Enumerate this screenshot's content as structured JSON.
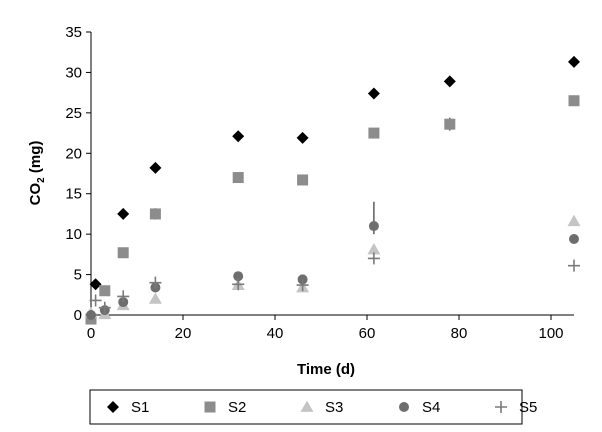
{
  "chart_data": {
    "type": "scatter",
    "title": "",
    "xlabel": "Time (d)",
    "ylabel_main": "CO",
    "ylabel_sub": "2",
    "ylabel_unit": " (mg)",
    "xlim": [
      0,
      105
    ],
    "ylim": [
      0,
      35
    ],
    "xticks": [
      0,
      20,
      40,
      60,
      80,
      100
    ],
    "yticks": [
      0,
      5,
      10,
      15,
      20,
      25,
      30,
      35
    ],
    "grid": false,
    "legend_position": "bottom",
    "series": [
      {
        "name": "S1",
        "marker": "diamond",
        "color": "#000000",
        "points": [
          [
            1,
            3.8
          ],
          [
            7,
            12.5
          ],
          [
            14,
            18.2
          ],
          [
            32,
            22.1
          ],
          [
            46,
            21.9
          ],
          [
            61.5,
            27.4
          ],
          [
            78,
            28.9
          ],
          [
            105,
            31.3
          ]
        ]
      },
      {
        "name": "S2",
        "marker": "square",
        "color": "#8c8c8c",
        "points": [
          [
            0,
            -0.5
          ],
          [
            3,
            3.0
          ],
          [
            7,
            7.7
          ],
          [
            14,
            12.5
          ],
          [
            32,
            17.0
          ],
          [
            46,
            16.7
          ],
          [
            61.5,
            22.5
          ],
          [
            78,
            23.6
          ],
          [
            105,
            26.5
          ]
        ]
      },
      {
        "name": "S3",
        "marker": "triangle",
        "color": "#c4c4c4",
        "points": [
          [
            0,
            0.2
          ],
          [
            3,
            0.1
          ],
          [
            7,
            1.2
          ],
          [
            14,
            2.0
          ],
          [
            32,
            3.7
          ],
          [
            46,
            3.4
          ],
          [
            61.5,
            8.1
          ],
          [
            105,
            11.6
          ]
        ]
      },
      {
        "name": "S4",
        "marker": "circle",
        "color": "#6e6e6e",
        "points": [
          [
            0,
            0.0
          ],
          [
            3,
            0.6
          ],
          [
            7,
            1.6
          ],
          [
            14,
            3.4
          ],
          [
            32,
            4.8
          ],
          [
            46,
            4.4
          ],
          [
            61.5,
            11.0
          ],
          [
            105,
            9.4
          ]
        ]
      },
      {
        "name": "S5",
        "marker": "plus",
        "color": "#7a7a7a",
        "points": [
          [
            1,
            1.8
          ],
          [
            3,
            0.9
          ],
          [
            7,
            2.3
          ],
          [
            14,
            4.0
          ],
          [
            32,
            3.8
          ],
          [
            46,
            3.7
          ],
          [
            61.5,
            7.0
          ],
          [
            105,
            6.1
          ]
        ]
      }
    ],
    "error_bars": [
      {
        "series": "S4",
        "x": 61.5,
        "low": 10.0,
        "high": 14.0
      },
      {
        "series": "S2",
        "x": 78,
        "low": 22.8,
        "high": 24.4
      },
      {
        "series": "S2",
        "x": 14,
        "low": 11.8,
        "high": 13.2
      }
    ]
  }
}
